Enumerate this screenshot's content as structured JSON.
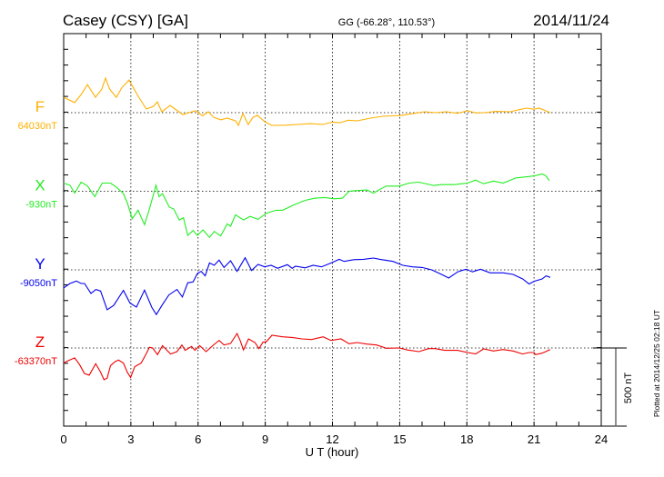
{
  "chart_data": {
    "type": "line",
    "title": "Casey (CSY)  [GA]",
    "subtitle": "GG (-66.28°, 110.53°)",
    "date": "2014/11/24",
    "xlabel": "U T (hour)",
    "xlim": [
      0,
      24
    ],
    "xticks": [
      "0",
      "3",
      "6",
      "9",
      "12",
      "15",
      "18",
      "21",
      "24"
    ],
    "grid": true,
    "scale_bar_label": "500 nT",
    "scale_bar_nT": 500,
    "nT_per_tick": 100,
    "footer": "Plotted at 2014/12/25 02:18 UT",
    "series": [
      {
        "name": "F",
        "baseline_label": "64030nT",
        "color": "#ffb000",
        "points": [
          [
            0,
            98
          ],
          [
            0.49,
            64
          ],
          [
            0.8,
            120
          ],
          [
            1.06,
            179
          ],
          [
            1.42,
            98
          ],
          [
            1.7,
            150
          ],
          [
            1.87,
            220
          ],
          [
            2.05,
            150
          ],
          [
            2.35,
            98
          ],
          [
            2.6,
            160
          ],
          [
            2.92,
            208
          ],
          [
            3.3,
            110
          ],
          [
            3.69,
            23
          ],
          [
            4.0,
            40
          ],
          [
            4.18,
            69
          ],
          [
            4.38,
            6
          ],
          [
            4.75,
            46
          ],
          [
            5.0,
            20
          ],
          [
            5.32,
            -12
          ],
          [
            5.6,
            0
          ],
          [
            5.89,
            12
          ],
          [
            6.2,
            -20
          ],
          [
            6.46,
            6
          ],
          [
            6.7,
            -30
          ],
          [
            7.02,
            -46
          ],
          [
            7.3,
            -35
          ],
          [
            7.67,
            -52
          ],
          [
            7.8,
            -81
          ],
          [
            8.0,
            -6
          ],
          [
            8.24,
            -75
          ],
          [
            8.45,
            -30
          ],
          [
            8.65,
            -17
          ],
          [
            9.0,
            -60
          ],
          [
            9.3,
            -81
          ],
          [
            9.9,
            -80
          ],
          [
            10.43,
            -75
          ],
          [
            11.0,
            -70
          ],
          [
            11.57,
            -75
          ],
          [
            12.0,
            -60
          ],
          [
            12.34,
            -64
          ],
          [
            12.7,
            -48
          ],
          [
            13.11,
            -52
          ],
          [
            13.7,
            -35
          ],
          [
            14.25,
            -23
          ],
          [
            14.7,
            -20
          ],
          [
            15.1,
            -17
          ],
          [
            15.6,
            -5
          ],
          [
            16.12,
            6
          ],
          [
            16.6,
            0
          ],
          [
            17.09,
            6
          ],
          [
            17.6,
            -4
          ],
          [
            18.03,
            12
          ],
          [
            18.4,
            -2
          ],
          [
            18.8,
            0
          ],
          [
            19.3,
            8
          ],
          [
            19.94,
            6
          ],
          [
            20.3,
            18
          ],
          [
            20.67,
            29
          ],
          [
            21.0,
            22
          ],
          [
            21.23,
            29
          ],
          [
            21.72,
            0
          ]
        ]
      },
      {
        "name": "X",
        "baseline_label": "-930nT",
        "color": "#22ee22",
        "points": [
          [
            0,
            52
          ],
          [
            0.28,
            38
          ],
          [
            0.49,
            -12
          ],
          [
            0.78,
            58
          ],
          [
            1.07,
            33
          ],
          [
            1.39,
            -35
          ],
          [
            1.72,
            52
          ],
          [
            2.09,
            52
          ],
          [
            2.38,
            23
          ],
          [
            2.67,
            -15
          ],
          [
            2.84,
            -73
          ],
          [
            3.06,
            -175
          ],
          [
            3.32,
            -121
          ],
          [
            3.61,
            -213
          ],
          [
            3.83,
            -112
          ],
          [
            4.12,
            38
          ],
          [
            4.26,
            -35
          ],
          [
            4.41,
            -15
          ],
          [
            4.72,
            -102
          ],
          [
            4.91,
            -112
          ],
          [
            5.16,
            -183
          ],
          [
            5.35,
            -169
          ],
          [
            5.54,
            -281
          ],
          [
            5.78,
            -250
          ],
          [
            5.97,
            -281
          ],
          [
            6.22,
            -246
          ],
          [
            6.51,
            -294
          ],
          [
            6.72,
            -256
          ],
          [
            7.01,
            -285
          ],
          [
            7.3,
            -208
          ],
          [
            7.45,
            -223
          ],
          [
            7.67,
            -150
          ],
          [
            8.03,
            -183
          ],
          [
            8.32,
            -160
          ],
          [
            8.68,
            -179
          ],
          [
            9.04,
            -140
          ],
          [
            9.48,
            -121
          ],
          [
            9.77,
            -121
          ],
          [
            10.35,
            -83
          ],
          [
            10.78,
            -58
          ],
          [
            11.22,
            -44
          ],
          [
            11.65,
            -40
          ],
          [
            12.09,
            -48
          ],
          [
            12.45,
            -44
          ],
          [
            12.74,
            0
          ],
          [
            13.03,
            4
          ],
          [
            13.54,
            8
          ],
          [
            13.83,
            -12
          ],
          [
            14.12,
            13
          ],
          [
            14.41,
            33
          ],
          [
            14.99,
            33
          ],
          [
            15.42,
            52
          ],
          [
            15.86,
            58
          ],
          [
            16.51,
            37
          ],
          [
            16.87,
            42
          ],
          [
            17.45,
            42
          ],
          [
            18.03,
            52
          ],
          [
            18.39,
            71
          ],
          [
            18.75,
            48
          ],
          [
            19.19,
            65
          ],
          [
            19.62,
            52
          ],
          [
            20.2,
            85
          ],
          [
            20.78,
            94
          ],
          [
            21.07,
            100
          ],
          [
            21.36,
            110
          ],
          [
            21.51,
            100
          ],
          [
            21.68,
            69
          ]
        ]
      },
      {
        "name": "Y",
        "baseline_label": "-9050nT",
        "color": "#0000ee",
        "points": [
          [
            0,
            -115
          ],
          [
            0.28,
            -87
          ],
          [
            0.57,
            -71
          ],
          [
            0.78,
            -87
          ],
          [
            0.93,
            -87
          ],
          [
            1.22,
            -150
          ],
          [
            1.44,
            -125
          ],
          [
            1.65,
            -135
          ],
          [
            1.94,
            -254
          ],
          [
            2.23,
            -227
          ],
          [
            2.67,
            -131
          ],
          [
            2.96,
            -212
          ],
          [
            3.25,
            -237
          ],
          [
            3.61,
            -129
          ],
          [
            3.94,
            -240
          ],
          [
            4.14,
            -285
          ],
          [
            4.41,
            -221
          ],
          [
            4.7,
            -160
          ],
          [
            5.06,
            -125
          ],
          [
            5.3,
            -173
          ],
          [
            5.54,
            -83
          ],
          [
            5.78,
            -77
          ],
          [
            5.97,
            -23
          ],
          [
            6.14,
            -10
          ],
          [
            6.32,
            -38
          ],
          [
            6.51,
            44
          ],
          [
            6.72,
            29
          ],
          [
            6.94,
            62
          ],
          [
            7.16,
            15
          ],
          [
            7.45,
            58
          ],
          [
            7.74,
            -10
          ],
          [
            8.1,
            77
          ],
          [
            8.39,
            -4
          ],
          [
            8.68,
            35
          ],
          [
            8.97,
            19
          ],
          [
            9.26,
            29
          ],
          [
            9.55,
            10
          ],
          [
            9.99,
            33
          ],
          [
            10.2,
            10
          ],
          [
            10.35,
            23
          ],
          [
            10.78,
            13
          ],
          [
            11.14,
            29
          ],
          [
            11.51,
            19
          ],
          [
            12.01,
            48
          ],
          [
            12.3,
            67
          ],
          [
            12.52,
            54
          ],
          [
            12.96,
            65
          ],
          [
            13.39,
            67
          ],
          [
            13.83,
            75
          ],
          [
            14.12,
            67
          ],
          [
            14.7,
            54
          ],
          [
            15.14,
            29
          ],
          [
            15.57,
            19
          ],
          [
            16.01,
            15
          ],
          [
            16.43,
            0
          ],
          [
            16.87,
            -29
          ],
          [
            17.19,
            -52
          ],
          [
            17.59,
            -13
          ],
          [
            17.96,
            4
          ],
          [
            18.25,
            -13
          ],
          [
            18.61,
            4
          ],
          [
            19.04,
            -19
          ],
          [
            19.62,
            -19
          ],
          [
            20.06,
            -29
          ],
          [
            20.49,
            -58
          ],
          [
            20.78,
            -90
          ],
          [
            21.0,
            -73
          ],
          [
            21.36,
            -58
          ],
          [
            21.54,
            -38
          ],
          [
            21.72,
            -48
          ]
        ]
      },
      {
        "name": "Z",
        "baseline_label": "-63370nT",
        "color": "#ee0000",
        "points": [
          [
            0,
            -96
          ],
          [
            0.2,
            -81
          ],
          [
            0.49,
            -63
          ],
          [
            0.71,
            -106
          ],
          [
            0.93,
            -163
          ],
          [
            1.14,
            -173
          ],
          [
            1.43,
            -100
          ],
          [
            1.65,
            -154
          ],
          [
            1.8,
            -202
          ],
          [
            1.94,
            -192
          ],
          [
            2.09,
            -112
          ],
          [
            2.3,
            -87
          ],
          [
            2.45,
            -77
          ],
          [
            2.67,
            -96
          ],
          [
            2.84,
            -154
          ],
          [
            2.99,
            -188
          ],
          [
            3.17,
            -119
          ],
          [
            3.46,
            -96
          ],
          [
            3.68,
            -38
          ],
          [
            3.83,
            4
          ],
          [
            3.97,
            0
          ],
          [
            4.19,
            -42
          ],
          [
            4.41,
            15
          ],
          [
            4.77,
            -38
          ],
          [
            5.06,
            -23
          ],
          [
            5.28,
            19
          ],
          [
            5.42,
            -15
          ],
          [
            5.71,
            10
          ],
          [
            5.86,
            -15
          ],
          [
            6.07,
            15
          ],
          [
            6.36,
            -23
          ],
          [
            6.72,
            23
          ],
          [
            6.94,
            48
          ],
          [
            7.16,
            19
          ],
          [
            7.45,
            29
          ],
          [
            7.74,
            92
          ],
          [
            7.88,
            48
          ],
          [
            8.03,
            -13
          ],
          [
            8.25,
            58
          ],
          [
            8.54,
            35
          ],
          [
            8.72,
            -4
          ],
          [
            8.9,
            38
          ],
          [
            9.04,
            38
          ],
          [
            9.3,
            81
          ],
          [
            9.77,
            71
          ],
          [
            10.2,
            67
          ],
          [
            10.64,
            58
          ],
          [
            11.07,
            54
          ],
          [
            11.58,
            71
          ],
          [
            11.94,
            48
          ],
          [
            12.38,
            58
          ],
          [
            12.74,
            27
          ],
          [
            13.1,
            35
          ],
          [
            13.54,
            25
          ],
          [
            13.97,
            19
          ],
          [
            14.41,
            -2
          ],
          [
            14.99,
            0
          ],
          [
            15.35,
            -13
          ],
          [
            15.86,
            -23
          ],
          [
            16.29,
            -4
          ],
          [
            16.58,
            -4
          ],
          [
            17.01,
            -15
          ],
          [
            17.59,
            -15
          ],
          [
            18.03,
            -29
          ],
          [
            18.39,
            -38
          ],
          [
            18.75,
            -6
          ],
          [
            19.19,
            -19
          ],
          [
            19.62,
            -10
          ],
          [
            20.06,
            -19
          ],
          [
            20.49,
            -38
          ],
          [
            20.78,
            -29
          ],
          [
            21.0,
            -29
          ],
          [
            21.07,
            -42
          ],
          [
            21.36,
            -33
          ],
          [
            21.72,
            -10
          ]
        ]
      }
    ]
  }
}
